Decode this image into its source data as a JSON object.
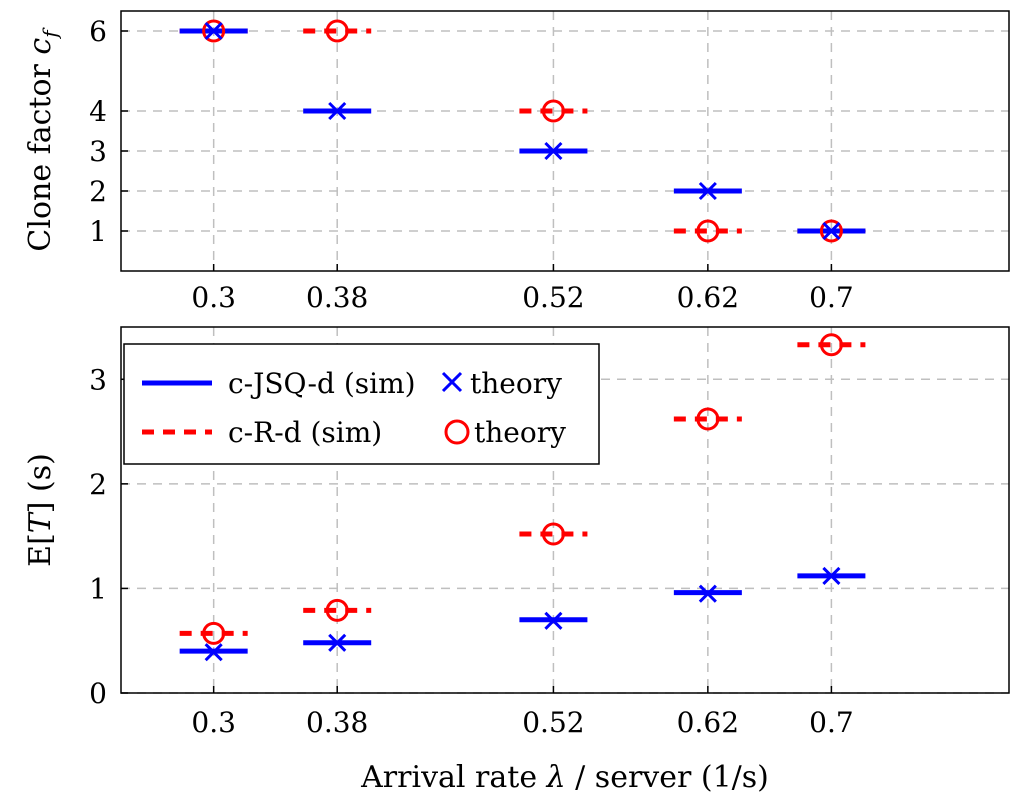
{
  "chart_data": [
    {
      "type": "scatter",
      "title": "",
      "xlabel": "",
      "ylabel": "Clone factor c_f",
      "ylabel_main": "Clone factor ",
      "ylabel_sym": "c",
      "ylabel_sub": "f",
      "x": [
        0.3,
        0.38,
        0.52,
        0.62,
        0.7
      ],
      "xtick_labels": [
        "0.3",
        "0.38",
        "0.52",
        "0.62",
        "0.7"
      ],
      "yticks": [
        1,
        2,
        3,
        4,
        6
      ],
      "ytick_labels": [
        "1",
        "2",
        "3",
        "4",
        "6"
      ],
      "ylim": [
        0,
        6.5
      ],
      "grid": true,
      "series": [
        {
          "name": "c-JSQ-d (sim)",
          "style": "solid",
          "color": "#0000ff",
          "values": [
            6,
            4,
            3,
            2,
            1
          ]
        },
        {
          "name": "c-JSQ-d theory",
          "marker": "x",
          "color": "#0000ff",
          "values": [
            6,
            4,
            3,
            2,
            1
          ]
        },
        {
          "name": "c-R-d (sim)",
          "style": "dashed",
          "color": "#ff0000",
          "values": [
            6,
            6,
            4,
            1,
            1
          ]
        },
        {
          "name": "c-R-d theory",
          "marker": "o",
          "color": "#ff0000",
          "values": [
            6,
            6,
            4,
            1,
            1
          ]
        }
      ]
    },
    {
      "type": "scatter",
      "title": "",
      "xlabel": "Arrival rate λ / server (1/s)",
      "xlabel_pre": "Arrival rate ",
      "xlabel_sym": "λ",
      "xlabel_post": " / server (1/s)",
      "ylabel": "E[T] (s)",
      "ylabel_pre": "E[",
      "ylabel_sym": "T",
      "ylabel_post": "] (s)",
      "x": [
        0.3,
        0.38,
        0.52,
        0.62,
        0.7
      ],
      "xtick_labels": [
        "0.3",
        "0.38",
        "0.52",
        "0.62",
        "0.7"
      ],
      "yticks": [
        0,
        1,
        2,
        3
      ],
      "ytick_labels": [
        "0",
        "1",
        "2",
        "3"
      ],
      "ylim": [
        0,
        3.5
      ],
      "grid": true,
      "legend_position": "top-left",
      "series": [
        {
          "name": "c-JSQ-d (sim)",
          "style": "solid",
          "color": "#0000ff",
          "values": [
            0.4,
            0.48,
            0.7,
            0.96,
            1.12
          ]
        },
        {
          "name": "c-JSQ-d theory",
          "marker": "x",
          "color": "#0000ff",
          "values": [
            0.39,
            0.48,
            0.69,
            0.95,
            1.12
          ]
        },
        {
          "name": "c-R-d (sim)",
          "style": "dashed",
          "color": "#ff0000",
          "values": [
            0.57,
            0.79,
            1.52,
            2.62,
            3.33
          ]
        },
        {
          "name": "c-R-d theory",
          "marker": "o",
          "color": "#ff0000",
          "values": [
            0.57,
            0.79,
            1.52,
            2.62,
            3.33
          ]
        }
      ]
    }
  ],
  "legend": {
    "row1_sim": "c-JSQ-d (sim)",
    "row1_theory": "theory",
    "row2_sim": "c-R-d (sim)",
    "row2_theory": "theory"
  }
}
